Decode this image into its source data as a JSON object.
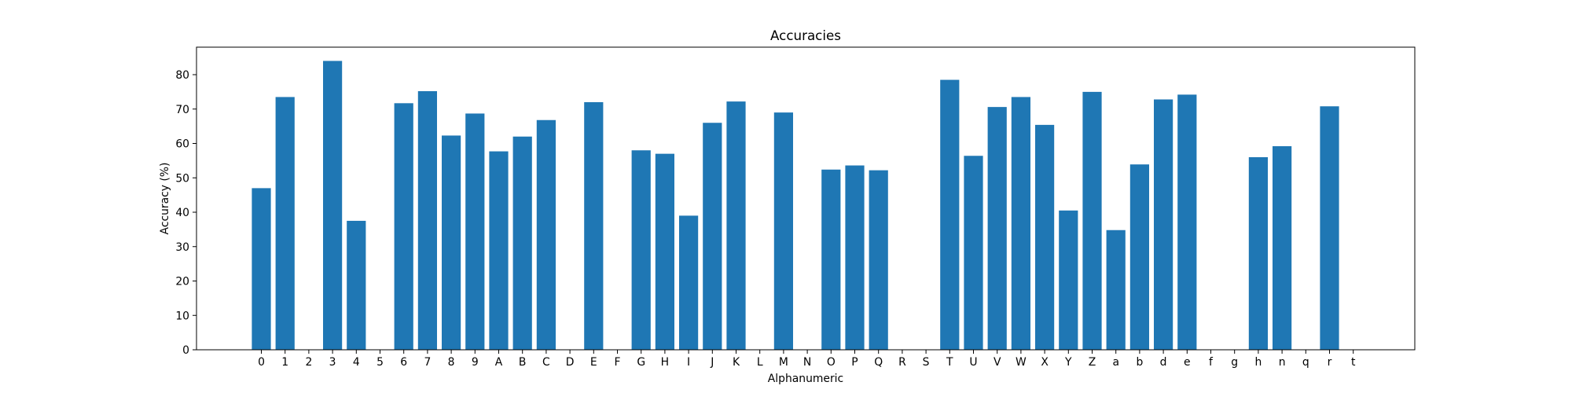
{
  "colors": {
    "bar": "#1f77b4",
    "axes": "#000000",
    "background": "#ffffff"
  },
  "chart_data": {
    "type": "bar",
    "title": "Accuracies",
    "xlabel": "Alphanumeric",
    "ylabel": "Accuracy (%)",
    "ylim": [
      0,
      88
    ],
    "yticks": [
      0,
      10,
      20,
      30,
      40,
      50,
      60,
      70,
      80
    ],
    "grid": false,
    "legend": "none",
    "categories": [
      "0",
      "1",
      "2",
      "3",
      "4",
      "5",
      "6",
      "7",
      "8",
      "9",
      "A",
      "B",
      "C",
      "D",
      "E",
      "F",
      "G",
      "H",
      "I",
      "J",
      "K",
      "L",
      "M",
      "N",
      "O",
      "P",
      "Q",
      "R",
      "S",
      "T",
      "U",
      "V",
      "W",
      "X",
      "Y",
      "Z",
      "a",
      "b",
      "d",
      "e",
      "f",
      "g",
      "h",
      "n",
      "q",
      "r",
      "t"
    ],
    "values": [
      47,
      73.5,
      0,
      84,
      37.5,
      0,
      71.7,
      75.2,
      62.3,
      68.7,
      57.7,
      62,
      66.8,
      0,
      72,
      0,
      58,
      57,
      39,
      66,
      72.2,
      0,
      69,
      0,
      52.4,
      53.6,
      52.2,
      0,
      0,
      78.5,
      56.4,
      70.6,
      73.5,
      65.4,
      40.5,
      75,
      34.8,
      53.9,
      72.8,
      74.2,
      0,
      0,
      56,
      59.2,
      0,
      70.8,
      0
    ]
  }
}
